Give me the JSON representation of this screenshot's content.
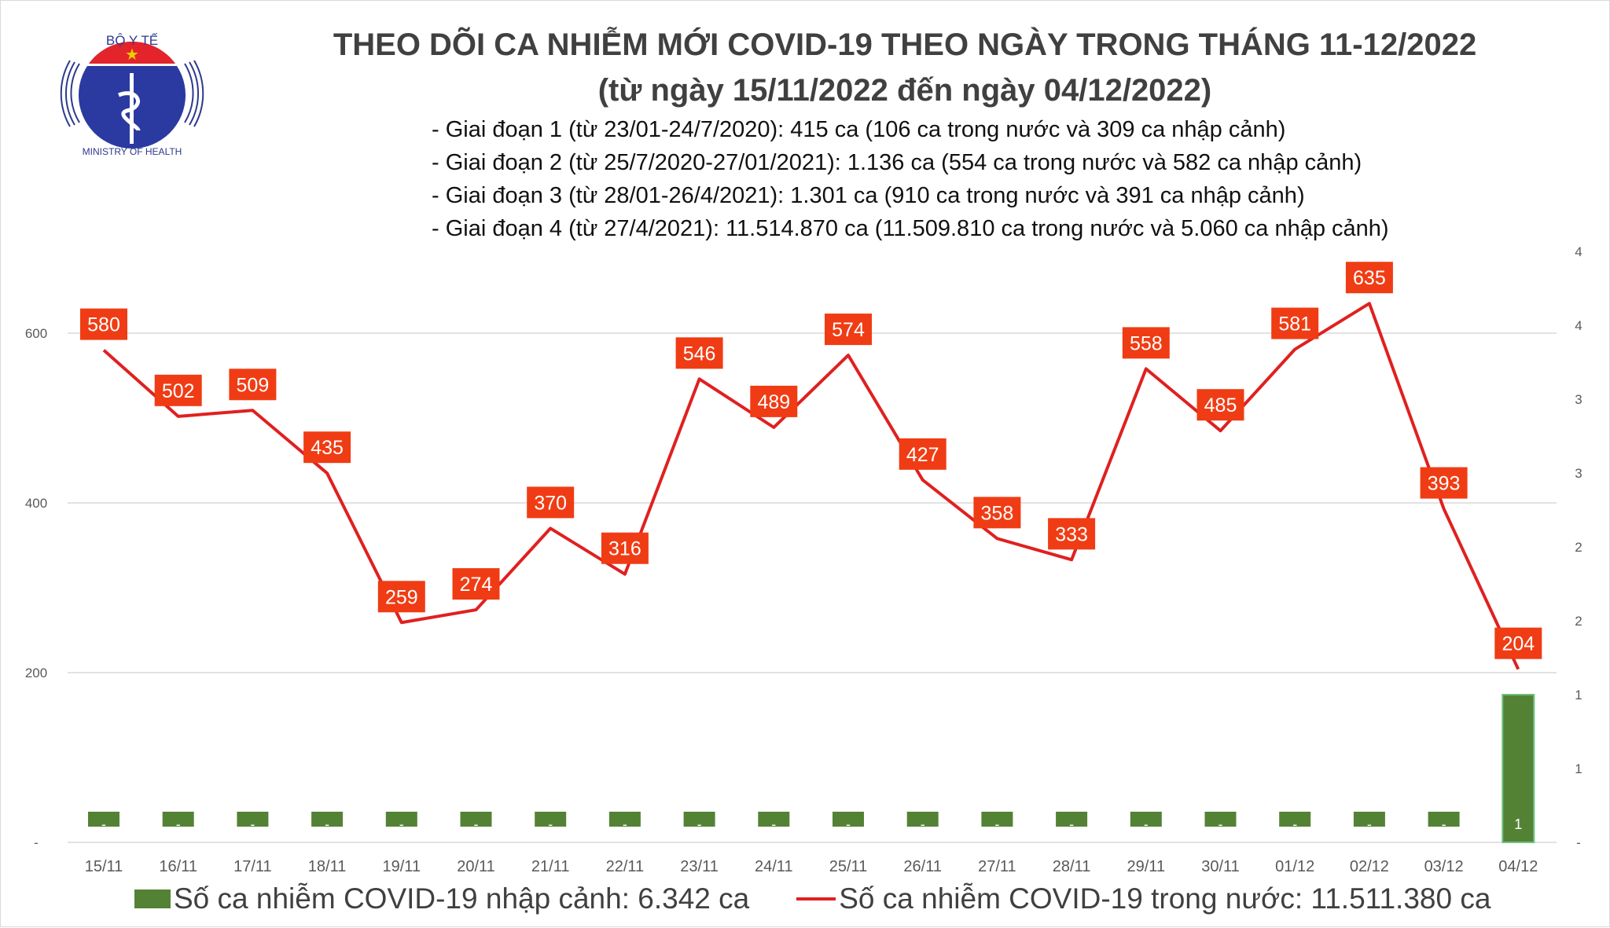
{
  "logo": {
    "top_text": "BỘ Y TẾ",
    "bottom_text": "MINISTRY OF HEALTH"
  },
  "title": "THEO DÕI CA NHIỄM MỚI COVID-19 THEO NGÀY TRONG THÁNG 11-12/2022",
  "subtitle": "(từ ngày 15/11/2022 đến ngày 04/12/2022)",
  "notes": [
    "- Giai đoạn 1 (từ 23/01-24/7/2020): 415 ca (106 ca trong nước và 309 ca nhập cảnh)",
    "- Giai đoạn 2 (từ 25/7/2020-27/01/2021): 1.136 ca (554 ca trong nước và 582 ca nhập cảnh)",
    "- Giai đoạn 3 (từ 28/01-26/4/2021): 1.301 ca (910 ca trong nước và 391 ca nhập cảnh)",
    "- Giai đoạn 4 (từ 27/4/2021): 11.514.870 ca (11.509.810 ca trong nước và 5.060 ca nhập cảnh)"
  ],
  "chart_data": {
    "type": "bar+line",
    "categories": [
      "15/11",
      "16/11",
      "17/11",
      "18/11",
      "19/11",
      "20/11",
      "21/11",
      "22/11",
      "23/11",
      "24/11",
      "25/11",
      "26/11",
      "27/11",
      "28/11",
      "29/11",
      "30/11",
      "01/12",
      "02/12",
      "03/12",
      "04/12"
    ],
    "series": [
      {
        "name": "Số ca nhiễm COVID-19 nhập cảnh: 6.342 ca",
        "type": "bar",
        "axis": "right",
        "color": "#548235",
        "values": [
          0,
          0,
          0,
          0,
          0,
          0,
          0,
          0,
          0,
          0,
          0,
          0,
          0,
          0,
          0,
          0,
          0,
          0,
          0,
          1
        ],
        "labels": [
          "-",
          "-",
          "-",
          "-",
          "-",
          "-",
          "-",
          "-",
          "-",
          "-",
          "-",
          "-",
          "-",
          "-",
          "-",
          "-",
          "-",
          "-",
          "-",
          "1"
        ]
      },
      {
        "name": "Số ca nhiễm COVID-19 trong nước: 11.511.380 ca",
        "type": "line",
        "axis": "left",
        "color": "#e02020",
        "values": [
          580,
          502,
          509,
          435,
          259,
          274,
          370,
          316,
          546,
          489,
          574,
          427,
          358,
          333,
          558,
          485,
          581,
          635,
          393,
          204
        ]
      }
    ],
    "left_axis": {
      "ylim": [
        0,
        700
      ],
      "ticks": [
        "-",
        "200",
        "400",
        "600"
      ]
    },
    "right_axis": {
      "ylim": [
        0,
        4.5
      ],
      "ticks": [
        "-",
        "1",
        "1",
        "2",
        "2",
        "3",
        "3",
        "4",
        "4"
      ]
    },
    "label_color": "#f03c14",
    "grid": true,
    "legend": "bottom"
  }
}
